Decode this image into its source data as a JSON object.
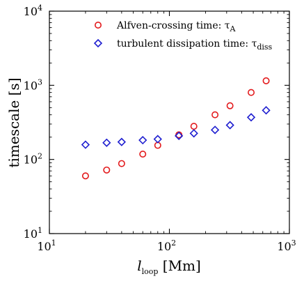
{
  "chart_data": {
    "type": "scatter",
    "xscale": "log",
    "yscale": "log",
    "xlim": [
      10,
      1000
    ],
    "ylim": [
      10,
      10000
    ],
    "grid": false,
    "legend_position": "top",
    "xlabel": {
      "main": "l",
      "sub": "loop",
      "unit": " [Mm]"
    },
    "ylabel": "timescale [s]",
    "x_ticks": [
      {
        "value": 10,
        "base": "10",
        "exp": "1"
      },
      {
        "value": 100,
        "base": "10",
        "exp": "2"
      },
      {
        "value": 1000,
        "base": "10",
        "exp": "3"
      }
    ],
    "y_ticks": [
      {
        "value": 10,
        "base": "10",
        "exp": "1"
      },
      {
        "value": 100,
        "base": "10",
        "exp": "2"
      },
      {
        "value": 1000,
        "base": "10",
        "exp": "3"
      },
      {
        "value": 10000,
        "base": "10",
        "exp": "4"
      }
    ],
    "series": [
      {
        "name": "Alfven-crossing time: τ_A",
        "legend_main": "Alfven-crossing time: τ",
        "legend_sub": "A",
        "marker": "circle",
        "color": "#e31a1c",
        "x": [
          20,
          30,
          40,
          60,
          80,
          120,
          160,
          240,
          320,
          480,
          640
        ],
        "y": [
          60,
          72,
          88,
          118,
          155,
          215,
          280,
          400,
          530,
          800,
          1150
        ]
      },
      {
        "name": "turbulent dissipation time: τ_diss",
        "legend_main": "turbulent dissipation time: τ",
        "legend_sub": "diss",
        "marker": "diamond",
        "color": "#1f1fd0",
        "x": [
          20,
          30,
          40,
          60,
          80,
          120,
          160,
          240,
          320,
          480,
          640
        ],
        "y": [
          158,
          168,
          172,
          182,
          188,
          208,
          225,
          250,
          290,
          370,
          460
        ]
      }
    ]
  }
}
